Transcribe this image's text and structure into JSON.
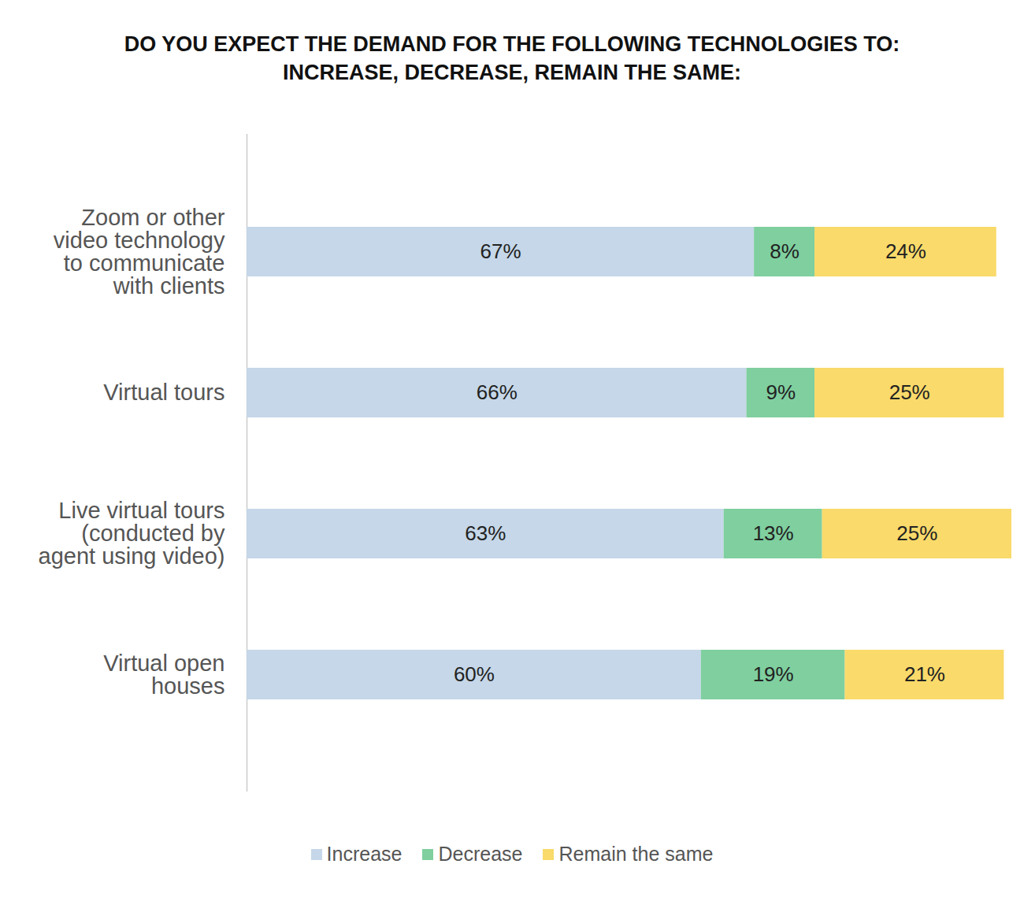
{
  "chart_data": {
    "type": "bar",
    "title": "DO YOU EXPECT THE DEMAND FOR THE FOLLOWING TECHNOLOGIES TO: INCREASE, DECREASE, REMAIN THE SAME:",
    "orientation": "horizontal",
    "stacked": true,
    "data_labels": true,
    "tick_labels": "y",
    "legend": "bottom",
    "categories": [
      "Zoom or other video technology to communicate with clients",
      "Virtual tours",
      "Live virtual tours (conducted by agent using video)",
      "Virtual open houses"
    ],
    "xlim": [
      0,
      101
    ],
    "series": [
      {
        "name": "Increase",
        "color": "#c5d7e8",
        "values": [
          67,
          66,
          63,
          60
        ],
        "value_labels": [
          "67%",
          "66%",
          "63%",
          "60%"
        ]
      },
      {
        "name": "Decrease",
        "color": "#7fcf9f",
        "values": [
          8,
          9,
          13,
          19
        ],
        "value_labels": [
          "8%",
          "9%",
          "13%",
          "19%"
        ]
      },
      {
        "name": "Remain the same",
        "color": "#f9da6a",
        "values": [
          24,
          25,
          25,
          21
        ],
        "value_labels": [
          "24%",
          "25%",
          "25%",
          "21%"
        ]
      }
    ]
  }
}
